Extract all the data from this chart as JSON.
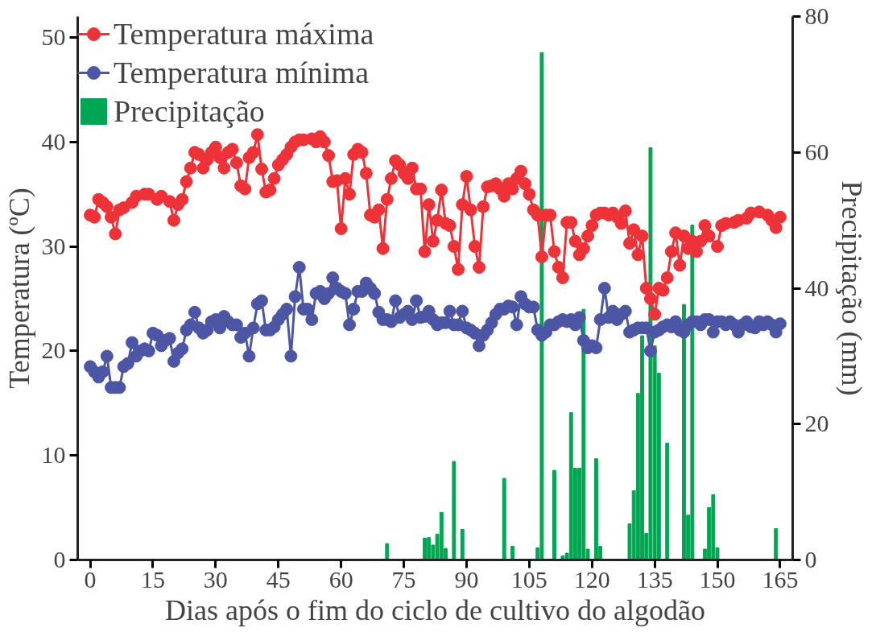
{
  "chart_data": {
    "type": "line",
    "xlabel": "Dias após o fim do ciclo de cultivo do algodão",
    "ylabel": "Temperatura (ºC)",
    "y2label": "Precipitação (mm)",
    "xlim": [
      -3,
      168
    ],
    "xticks": [
      0,
      15,
      30,
      45,
      60,
      75,
      90,
      105,
      120,
      135,
      150,
      165
    ],
    "ylim": [
      0,
      52
    ],
    "yticks": [
      0,
      10,
      20,
      30,
      40,
      50
    ],
    "y2lim": [
      0,
      80
    ],
    "y2ticks": [
      0,
      20,
      40,
      60,
      80
    ],
    "grid": false,
    "legend": "top left",
    "marker": "circle",
    "line_style": "solid",
    "series": [
      {
        "name": "Temperatura máxima",
        "color": "#ee3338",
        "x": [
          0,
          1,
          2,
          3,
          4,
          5,
          6,
          7,
          8,
          10,
          11,
          13,
          14,
          16,
          17,
          19,
          20,
          21,
          22,
          23,
          24,
          25,
          26,
          27,
          28,
          29,
          30,
          31,
          32,
          33,
          34,
          35,
          36,
          37,
          38,
          39,
          40,
          41,
          42,
          43,
          44,
          45,
          46,
          47,
          48,
          49,
          50,
          51,
          53,
          54,
          55,
          56,
          57,
          58,
          59,
          60,
          61,
          62,
          63,
          64,
          65,
          66,
          67,
          68,
          69,
          70,
          71,
          72,
          73,
          74,
          75,
          76,
          77,
          78,
          79,
          80,
          81,
          82,
          83,
          84,
          85,
          86,
          87,
          88,
          89,
          90,
          91,
          92,
          93,
          94,
          95,
          96,
          97,
          98,
          99,
          100,
          101,
          102,
          103,
          104,
          105,
          106,
          107,
          108,
          109,
          110,
          111,
          112,
          113,
          114,
          115,
          116,
          117,
          118,
          119,
          120,
          121,
          122,
          123,
          124,
          125,
          126,
          127,
          128,
          129,
          130,
          131,
          132,
          133,
          134,
          135,
          136,
          137,
          138,
          139,
          140,
          141,
          142,
          143,
          144,
          145,
          146,
          147,
          148,
          150,
          151,
          152,
          154,
          155,
          157,
          158,
          160,
          162,
          163,
          164,
          165
        ],
        "values": [
          33,
          32.8,
          34.5,
          34.2,
          33.8,
          32.8,
          31.2,
          33.5,
          33.7,
          34.2,
          34.8,
          35,
          35,
          34.5,
          34.8,
          34.3,
          32.5,
          34,
          34.5,
          36.2,
          37.5,
          39,
          38.8,
          37.5,
          38.3,
          39,
          39.5,
          38.5,
          37.5,
          39,
          39.3,
          38,
          35.8,
          35.5,
          38.5,
          39,
          40.7,
          37.4,
          35.2,
          35.4,
          36.5,
          37.8,
          38.3,
          38.8,
          39.5,
          40,
          40.2,
          40.2,
          40.3,
          40,
          40.5,
          40,
          38.7,
          36.2,
          36.3,
          31.7,
          36.5,
          35,
          38.8,
          39.3,
          39,
          37,
          33,
          32.8,
          33.5,
          29.8,
          34.5,
          36.5,
          38.2,
          37.8,
          37,
          36.5,
          37.5,
          35.5,
          35.5,
          29.5,
          34,
          30.5,
          32.5,
          35.4,
          32.2,
          32,
          30,
          27.8,
          34,
          36.7,
          33.5,
          30,
          28,
          33.8,
          35.7,
          35.8,
          36,
          35.5,
          34.8,
          36,
          35.5,
          36.5,
          37.2,
          36,
          35,
          33.5,
          33,
          29,
          33,
          33,
          29.5,
          28,
          27,
          32.3,
          32.3,
          30.5,
          29.2,
          29.8,
          31,
          32,
          33,
          33.2,
          33.2,
          33,
          33.2,
          32.8,
          32.2,
          33.4,
          30.3,
          31.6,
          29.2,
          31,
          26,
          25,
          23.5,
          26,
          25.8,
          27,
          29.5,
          31.3,
          28.2,
          31,
          29.8,
          30.5,
          29.5,
          30.5,
          32,
          31,
          30,
          32,
          32.2,
          32.3,
          32.5,
          32.7,
          33.2,
          33.3,
          33,
          32.5,
          31.8,
          32.8
        ]
      },
      {
        "name": "Temperatura mínima",
        "color": "#4c56a4",
        "x": [
          0,
          1,
          2,
          3,
          4,
          5,
          6,
          7,
          8,
          9,
          10,
          11,
          12,
          13,
          14,
          15,
          16,
          17,
          18,
          19,
          20,
          21,
          22,
          23,
          24,
          25,
          26,
          27,
          28,
          29,
          30,
          31,
          32,
          33,
          34,
          35,
          36,
          37,
          38,
          39,
          40,
          41,
          42,
          43,
          44,
          45,
          46,
          47,
          48,
          49,
          50,
          51,
          52,
          53,
          54,
          55,
          56,
          57,
          58,
          59,
          60,
          61,
          62,
          63,
          64,
          65,
          66,
          67,
          68,
          69,
          70,
          71,
          72,
          73,
          74,
          75,
          76,
          77,
          78,
          79,
          80,
          81,
          82,
          83,
          84,
          85,
          86,
          87,
          88,
          89,
          90,
          91,
          92,
          93,
          94,
          95,
          96,
          97,
          98,
          99,
          100,
          101,
          102,
          103,
          104,
          105,
          106,
          107,
          108,
          109,
          110,
          111,
          112,
          113,
          114,
          115,
          116,
          117,
          118,
          119,
          120,
          121,
          122,
          123,
          124,
          125,
          126,
          127,
          128,
          129,
          130,
          131,
          132,
          133,
          134,
          135,
          136,
          137,
          138,
          139,
          140,
          141,
          142,
          143,
          144,
          145,
          146,
          147,
          148,
          149,
          150,
          151,
          152,
          153,
          154,
          155,
          156,
          157,
          158,
          159,
          160,
          161,
          162,
          163,
          164,
          165
        ],
        "values": [
          18.5,
          18,
          17.5,
          18,
          19.5,
          16.5,
          16.5,
          16.5,
          18.5,
          18.8,
          20.8,
          19.5,
          20,
          20.2,
          20,
          21.7,
          21.5,
          20.5,
          21,
          21.2,
          19,
          19.8,
          20.2,
          22,
          22.5,
          23.7,
          22.2,
          21.7,
          22,
          22.8,
          23,
          22.2,
          23.3,
          22.8,
          22.5,
          22.5,
          21.3,
          21.7,
          19.5,
          22.2,
          24.5,
          24.8,
          22,
          22,
          22.3,
          23,
          23.5,
          24,
          19.5,
          25.2,
          28,
          24,
          24,
          23,
          25.5,
          25.7,
          25,
          25.5,
          27,
          26,
          25.7,
          25.5,
          22.5,
          24,
          25.7,
          25.7,
          26.5,
          26,
          25.5,
          23.7,
          23,
          23,
          22.8,
          24.8,
          23.2,
          23.5,
          23.8,
          23,
          24.8,
          23.2,
          23.3,
          23.8,
          23,
          22.5,
          22.7,
          22.7,
          23.8,
          22.5,
          22.5,
          23.8,
          22.2,
          22,
          21.7,
          20.5,
          21.5,
          22,
          22.7,
          23.5,
          24,
          24,
          24.3,
          24.2,
          22.5,
          25.2,
          24.5,
          24.2,
          24.2,
          22,
          21.5,
          21.8,
          22.5,
          22.5,
          22.8,
          23,
          22.8,
          23,
          22.5,
          23.2,
          21,
          20.3,
          20.5,
          20.3,
          23,
          26,
          23.2,
          23.8,
          23,
          23.5,
          23.8,
          21.8,
          22,
          22.2,
          22.2,
          22.2,
          20,
          21.8,
          22,
          22.3,
          22.5,
          22.3,
          22.8,
          22,
          21.8,
          22.5,
          22.8,
          22.8,
          22.5,
          23,
          23,
          21.8,
          22.8,
          22.8,
          22.5,
          22.8,
          22.5,
          21.8,
          22.5,
          22.8,
          22.3,
          22.2,
          22.8,
          22.5,
          22.8,
          22.5,
          21.8,
          22.6
        ]
      },
      {
        "name": "Precipitação",
        "color": "#00a651",
        "type": "bar",
        "axis": "y2",
        "x": [
          71,
          80,
          81,
          82,
          83,
          84,
          85,
          87,
          89,
          99,
          101,
          107,
          108,
          111,
          113,
          114,
          115,
          116,
          117,
          118,
          119,
          121,
          122,
          129,
          130,
          131,
          132,
          133,
          134,
          135,
          136,
          138,
          142,
          143,
          144,
          147,
          148,
          149,
          150,
          164
        ],
        "values": [
          2.4,
          3.2,
          3.3,
          2.2,
          3.8,
          7.0,
          1.7,
          14.5,
          4.5,
          12,
          2.0,
          1.8,
          74.7,
          13.2,
          0.6,
          1.0,
          21.7,
          13.5,
          13.5,
          36.9,
          1.6,
          14.9,
          2.0,
          5.3,
          10.2,
          24.5,
          33,
          3.9,
          60.7,
          31.5,
          27.5,
          17.2,
          37.6,
          6.6,
          49.3,
          1.6,
          7.7,
          9.6,
          1.8,
          4.6
        ]
      }
    ]
  }
}
